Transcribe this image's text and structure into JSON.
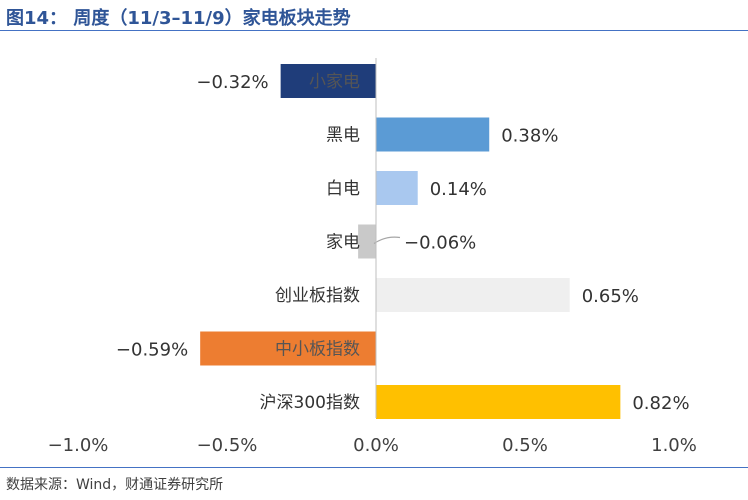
{
  "title": "图14：   周度（11/3–11/9）家电板块走势",
  "source": "数据来源：Wind，财通证券研究所",
  "colors": {
    "title": "#2f5597",
    "rule": "#4472c4"
  },
  "chart_data": {
    "type": "bar",
    "orientation": "horizontal",
    "categories": [
      "小家电",
      "黑电",
      "白电",
      "家电",
      "创业板指数",
      "中小板指数",
      "沪深300指数"
    ],
    "values": [
      -0.32,
      0.38,
      0.14,
      -0.06,
      0.65,
      -0.59,
      0.82
    ],
    "value_labels": [
      "−0.32%",
      "0.38%",
      "0.14%",
      "−0.06%",
      "0.65%",
      "−0.59%",
      "0.82%"
    ],
    "bar_colors": [
      "#1f3d7a",
      "#5b9bd5",
      "#a9c8ef",
      "#c9c9c9",
      "#efefef",
      "#ed7d31",
      "#ffc000"
    ],
    "xlim": [
      -1.0,
      1.0
    ],
    "xticks": [
      -1.0,
      -0.5,
      0.0,
      0.5,
      1.0
    ],
    "xtick_labels": [
      "−1.0%",
      "−0.5%",
      "0.0%",
      "0.5%",
      "1.0%"
    ],
    "grid": false,
    "legend": "none"
  }
}
